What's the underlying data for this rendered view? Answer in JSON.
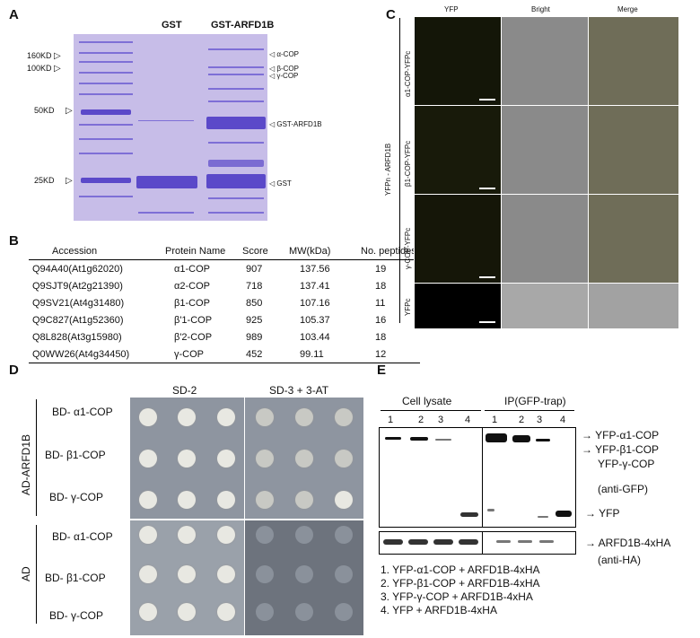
{
  "panelA": {
    "label": "A",
    "lane_gst": "GST",
    "lane_gst_arfd1b": "GST-ARFD1B",
    "markers": [
      "160KD",
      "100KD",
      "50KD",
      "25KD"
    ],
    "right_labels": [
      "α-COP",
      "β-COP",
      "γ-COP",
      "GST-ARFD1B",
      "GST"
    ]
  },
  "panelB": {
    "label": "B",
    "headers": [
      "Accession",
      "Protein Name",
      "Score",
      "MW(kDa)",
      "No. peptides"
    ],
    "rows": [
      [
        "Q94A40(At1g62020)",
        "α1-COP",
        "907",
        "137.56",
        "19"
      ],
      [
        "Q9SJT9(At2g21390)",
        "α2-COP",
        "718",
        "137.41",
        "18"
      ],
      [
        "Q9SV21(At4g31480)",
        "β1-COP",
        "850",
        "107.16",
        "11"
      ],
      [
        "Q9C827(At1g52360)",
        "β'1-COP",
        "925",
        "105.37",
        "16"
      ],
      [
        "Q8L828(At3g15980)",
        "β'2-COP",
        "989",
        "103.44",
        "18"
      ],
      [
        "Q0WW26(At4g34450)",
        "γ-COP",
        "452",
        "99.11",
        "12"
      ]
    ]
  },
  "panelC": {
    "label": "C",
    "columns": [
      "YFP",
      "Bright",
      "Merge"
    ],
    "group_label": "YFPn - ARFD1B",
    "rows": [
      "α1-COP-YFPc",
      "β1-COP-YFPc",
      "γ-COP-YFPc",
      "YFPc"
    ]
  },
  "panelD": {
    "label": "D",
    "col1": "SD-2",
    "col2": "SD-3 + 3-AT",
    "group1": "AD-ARFD1B",
    "group2": "AD",
    "rows": [
      "BD- α1-COP",
      "BD- β1-COP",
      "BD- γ-COP",
      "BD- α1-COP",
      "BD- β1-COP",
      "BD- γ-COP"
    ]
  },
  "panelE": {
    "label": "E",
    "header_left": "Cell lysate",
    "header_right": "IP(GFP-trap)",
    "lanes": [
      "1",
      "2",
      "3",
      "4",
      "1",
      "2",
      "3",
      "4"
    ],
    "right_labels": [
      "YFP-α1-COP",
      "YFP-β1-COP",
      "YFP-γ-COP",
      "(anti-GFP)",
      "YFP",
      "ARFD1B-4xHA",
      "(anti-HA)"
    ],
    "legend": [
      "1. YFP-α1-COP + ARFD1B-4xHA",
      "2. YFP-β1-COP + ARFD1B-4xHA",
      "3. YFP-γ-COP + ARFD1B-4xHA",
      "4. YFP + ARFD1B-4xHA"
    ]
  }
}
